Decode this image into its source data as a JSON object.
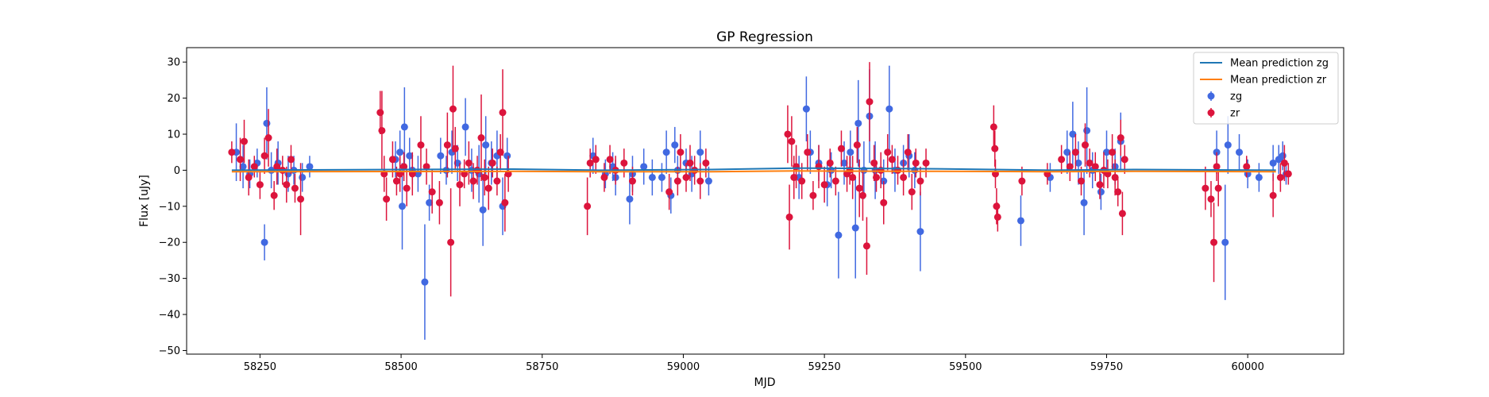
{
  "chart_data": {
    "type": "scatter",
    "title": "GP Regression",
    "xlabel": "MJD",
    "ylabel": "Flux [uJy]",
    "xlim": [
      58120,
      60170
    ],
    "ylim": [
      -51,
      34
    ],
    "xticks": [
      58250,
      58500,
      58750,
      59000,
      59250,
      59500,
      59750,
      60000
    ],
    "yticks": [
      -50,
      -40,
      -30,
      -20,
      -10,
      0,
      10,
      20,
      30
    ],
    "grid": false,
    "legend_position": "top-right",
    "legend": [
      {
        "label": "Mean prediction zg",
        "kind": "line",
        "color": "#1f77b4"
      },
      {
        "label": "Mean prediction zr",
        "kind": "line",
        "color": "#ff7f0e"
      },
      {
        "label": "zg",
        "kind": "errorbar",
        "color": "#4169e1"
      },
      {
        "label": "zr",
        "kind": "errorbar",
        "color": "#dc143c"
      }
    ],
    "mean_lines": [
      {
        "name": "Mean prediction zg",
        "color": "#1f77b4",
        "x": [
          58200,
          58700,
          58850,
          59050,
          59200,
          59450,
          59650,
          59800,
          60050
        ],
        "y": [
          0,
          0.3,
          0,
          0.2,
          0.6,
          0.4,
          0,
          0.2,
          0
        ]
      },
      {
        "name": "Mean prediction zr",
        "color": "#ff7f0e",
        "x": [
          58200,
          58700,
          58850,
          59050,
          59200,
          59450,
          59650,
          59800,
          60050
        ],
        "y": [
          -0.4,
          -0.3,
          -0.4,
          -0.4,
          -0.2,
          -0.3,
          -0.4,
          -0.3,
          -0.4
        ]
      }
    ],
    "series": [
      {
        "name": "zg",
        "color": "#4169e1",
        "points": [
          [
            58208,
            5,
            8
          ],
          [
            58220,
            1,
            6
          ],
          [
            58232,
            -1,
            4
          ],
          [
            58245,
            2,
            4
          ],
          [
            58258,
            -20,
            5
          ],
          [
            58262,
            13,
            10
          ],
          [
            58270,
            0,
            5
          ],
          [
            58282,
            2,
            6
          ],
          [
            58300,
            -1,
            5
          ],
          [
            58310,
            0,
            4
          ],
          [
            58325,
            -2,
            4
          ],
          [
            58338,
            1,
            3
          ],
          [
            58490,
            3,
            5
          ],
          [
            58498,
            5,
            6
          ],
          [
            58502,
            -10,
            12
          ],
          [
            58506,
            12,
            11
          ],
          [
            58515,
            4,
            5
          ],
          [
            58520,
            0,
            4
          ],
          [
            58530,
            -1,
            5
          ],
          [
            58542,
            -31,
            16
          ],
          [
            58550,
            -9,
            5
          ],
          [
            58570,
            4,
            5
          ],
          [
            58580,
            0,
            4
          ],
          [
            58590,
            5,
            6
          ],
          [
            58600,
            2,
            5
          ],
          [
            58614,
            12,
            8
          ],
          [
            58625,
            0,
            6
          ],
          [
            58638,
            -1,
            8
          ],
          [
            58645,
            -11,
            10
          ],
          [
            58650,
            7,
            8
          ],
          [
            58660,
            2,
            6
          ],
          [
            58670,
            4,
            7
          ],
          [
            58680,
            -10,
            8
          ],
          [
            58688,
            4,
            5
          ],
          [
            58840,
            4,
            5
          ],
          [
            58862,
            -1,
            4
          ],
          [
            58875,
            1,
            4
          ],
          [
            58880,
            -2,
            5
          ],
          [
            58905,
            -8,
            7
          ],
          [
            58910,
            -1,
            5
          ],
          [
            58930,
            1,
            5
          ],
          [
            58945,
            -2,
            5
          ],
          [
            58962,
            -2,
            4
          ],
          [
            58970,
            5,
            6
          ],
          [
            58978,
            -7,
            5
          ],
          [
            58985,
            7,
            5
          ],
          [
            58990,
            0,
            4
          ],
          [
            59005,
            2,
            4
          ],
          [
            59015,
            -1,
            5
          ],
          [
            59030,
            5,
            6
          ],
          [
            59045,
            -3,
            4
          ],
          [
            59205,
            -2,
            6
          ],
          [
            59218,
            17,
            9
          ],
          [
            59225,
            5,
            6
          ],
          [
            59240,
            2,
            5
          ],
          [
            59255,
            -4,
            6
          ],
          [
            59262,
            0,
            5
          ],
          [
            59275,
            -18,
            12
          ],
          [
            59285,
            2,
            6
          ],
          [
            59296,
            5,
            6
          ],
          [
            59305,
            -16,
            14
          ],
          [
            59310,
            13,
            12
          ],
          [
            59320,
            0,
            8
          ],
          [
            59330,
            15,
            13
          ],
          [
            59340,
            0,
            8
          ],
          [
            59355,
            -3,
            6
          ],
          [
            59365,
            17,
            12
          ],
          [
            59375,
            0,
            6
          ],
          [
            59390,
            2,
            5
          ],
          [
            59400,
            4,
            6
          ],
          [
            59410,
            0,
            5
          ],
          [
            59420,
            -17,
            11
          ],
          [
            59598,
            -14,
            7
          ],
          [
            59650,
            -2,
            4
          ],
          [
            59680,
            5,
            6
          ],
          [
            59690,
            10,
            9
          ],
          [
            59700,
            2,
            6
          ],
          [
            59710,
            -9,
            9
          ],
          [
            59715,
            11,
            12
          ],
          [
            59725,
            0,
            5
          ],
          [
            59740,
            -6,
            5
          ],
          [
            59750,
            5,
            6
          ],
          [
            59765,
            1,
            5
          ],
          [
            59775,
            8,
            8
          ],
          [
            59945,
            5,
            6
          ],
          [
            59960,
            -20,
            16
          ],
          [
            59965,
            7,
            8
          ],
          [
            59985,
            5,
            5
          ],
          [
            60000,
            -1,
            4
          ],
          [
            60020,
            -2,
            4
          ],
          [
            60045,
            2,
            5
          ],
          [
            60055,
            3,
            4
          ],
          [
            60062,
            4,
            4
          ],
          [
            60068,
            -1,
            3
          ]
        ]
      },
      {
        "name": "zr",
        "color": "#dc143c",
        "points": [
          [
            58200,
            5,
            3
          ],
          [
            58215,
            3,
            6
          ],
          [
            58222,
            8,
            6
          ],
          [
            58230,
            -2,
            5
          ],
          [
            58240,
            1,
            3
          ],
          [
            58250,
            -4,
            4
          ],
          [
            58258,
            4,
            5
          ],
          [
            58265,
            9,
            8
          ],
          [
            58275,
            -7,
            4
          ],
          [
            58280,
            1,
            5
          ],
          [
            58290,
            0,
            4
          ],
          [
            58297,
            -4,
            5
          ],
          [
            58305,
            3,
            4
          ],
          [
            58312,
            -5,
            4
          ],
          [
            58322,
            -8,
            10
          ],
          [
            58463,
            16,
            6
          ],
          [
            58466,
            11,
            11
          ],
          [
            58470,
            -1,
            5
          ],
          [
            58474,
            -8,
            6
          ],
          [
            58485,
            3,
            5
          ],
          [
            58492,
            -3,
            4
          ],
          [
            58498,
            -1,
            5
          ],
          [
            58505,
            1,
            4
          ],
          [
            58510,
            -5,
            5
          ],
          [
            58520,
            -1,
            6
          ],
          [
            58535,
            7,
            8
          ],
          [
            58545,
            1,
            5
          ],
          [
            58555,
            -6,
            6
          ],
          [
            58568,
            -9,
            6
          ],
          [
            58582,
            7,
            9
          ],
          [
            58588,
            -20,
            15
          ],
          [
            58592,
            17,
            12
          ],
          [
            58596,
            6,
            6
          ],
          [
            58604,
            -4,
            6
          ],
          [
            58612,
            -1,
            4
          ],
          [
            58620,
            2,
            6
          ],
          [
            58628,
            -3,
            5
          ],
          [
            58635,
            0,
            4
          ],
          [
            58642,
            9,
            12
          ],
          [
            58648,
            -2,
            5
          ],
          [
            58655,
            -5,
            6
          ],
          [
            58662,
            2,
            4
          ],
          [
            58670,
            -3,
            4
          ],
          [
            58676,
            5,
            5
          ],
          [
            58680,
            16,
            12
          ],
          [
            58684,
            -9,
            8
          ],
          [
            58690,
            -1,
            5
          ],
          [
            58830,
            -10,
            8
          ],
          [
            58835,
            2,
            4
          ],
          [
            58845,
            3,
            4
          ],
          [
            58860,
            -2,
            4
          ],
          [
            58870,
            3,
            4
          ],
          [
            58880,
            0,
            4
          ],
          [
            58895,
            2,
            4
          ],
          [
            58910,
            -3,
            4
          ],
          [
            58975,
            -6,
            5
          ],
          [
            58990,
            -3,
            4
          ],
          [
            58995,
            5,
            5
          ],
          [
            59005,
            -2,
            4
          ],
          [
            59012,
            2,
            5
          ],
          [
            59020,
            0,
            4
          ],
          [
            59030,
            -3,
            5
          ],
          [
            59040,
            2,
            4
          ],
          [
            59185,
            10,
            8
          ],
          [
            59188,
            -13,
            9
          ],
          [
            59192,
            8,
            7
          ],
          [
            59196,
            -2,
            6
          ],
          [
            59200,
            1,
            6
          ],
          [
            59210,
            -3,
            5
          ],
          [
            59220,
            5,
            5
          ],
          [
            59230,
            -7,
            4
          ],
          [
            59240,
            1,
            6
          ],
          [
            59250,
            -4,
            5
          ],
          [
            59260,
            2,
            4
          ],
          [
            59270,
            -3,
            4
          ],
          [
            59280,
            6,
            5
          ],
          [
            59290,
            -1,
            5
          ],
          [
            59295,
            0,
            4
          ],
          [
            59300,
            -2,
            6
          ],
          [
            59308,
            7,
            5
          ],
          [
            59312,
            -5,
            8
          ],
          [
            59318,
            -7,
            7
          ],
          [
            59325,
            -21,
            8
          ],
          [
            59330,
            19,
            11
          ],
          [
            59338,
            2,
            5
          ],
          [
            59342,
            -2,
            4
          ],
          [
            59350,
            0,
            5
          ],
          [
            59355,
            -9,
            6
          ],
          [
            59362,
            5,
            5
          ],
          [
            59370,
            3,
            4
          ],
          [
            59380,
            0,
            4
          ],
          [
            59390,
            -2,
            5
          ],
          [
            59398,
            5,
            5
          ],
          [
            59405,
            -6,
            5
          ],
          [
            59412,
            2,
            4
          ],
          [
            59420,
            -3,
            4
          ],
          [
            59430,
            2,
            4
          ],
          [
            59550,
            12,
            6
          ],
          [
            59552,
            6,
            5
          ],
          [
            59553,
            -1,
            4
          ],
          [
            59555,
            -10,
            5
          ],
          [
            59557,
            -13,
            4
          ],
          [
            59600,
            -3,
            4
          ],
          [
            59645,
            -1,
            3
          ],
          [
            59670,
            3,
            4
          ],
          [
            59685,
            1,
            4
          ],
          [
            59695,
            5,
            5
          ],
          [
            59705,
            -3,
            4
          ],
          [
            59712,
            7,
            6
          ],
          [
            59720,
            2,
            4
          ],
          [
            59730,
            1,
            4
          ],
          [
            59738,
            -4,
            4
          ],
          [
            59745,
            0,
            5
          ],
          [
            59752,
            -1,
            4
          ],
          [
            59760,
            5,
            5
          ],
          [
            59765,
            -2,
            5
          ],
          [
            59770,
            -6,
            4
          ],
          [
            59775,
            9,
            5
          ],
          [
            59778,
            -12,
            6
          ],
          [
            59782,
            3,
            4
          ],
          [
            59925,
            -5,
            6
          ],
          [
            59935,
            -8,
            5
          ],
          [
            59940,
            -20,
            11
          ],
          [
            59945,
            1,
            4
          ],
          [
            59948,
            -5,
            5
          ],
          [
            59998,
            1,
            3
          ],
          [
            60045,
            -7,
            6
          ],
          [
            60058,
            -2,
            4
          ],
          [
            60065,
            2,
            5
          ],
          [
            60072,
            -1,
            3
          ]
        ]
      }
    ]
  }
}
